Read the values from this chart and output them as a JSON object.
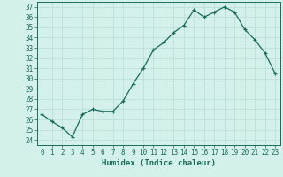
{
  "x": [
    0,
    1,
    2,
    3,
    4,
    5,
    6,
    7,
    8,
    9,
    10,
    11,
    12,
    13,
    14,
    15,
    16,
    17,
    18,
    19,
    20,
    21,
    22,
    23
  ],
  "y": [
    26.5,
    25.8,
    25.2,
    24.3,
    26.5,
    27.0,
    26.8,
    26.8,
    27.8,
    29.5,
    31.0,
    32.8,
    33.5,
    34.5,
    35.2,
    36.7,
    36.0,
    36.5,
    37.0,
    36.5,
    34.8,
    33.8,
    32.5,
    30.5
  ],
  "line_color": "#1a6b5a",
  "marker": "+",
  "marker_size": 3,
  "bg_color": "#d4f0eb",
  "grid_color": "#b8ddd8",
  "xlabel": "Humidex (Indice chaleur)",
  "ylim": [
    23.5,
    37.5
  ],
  "yticks": [
    24,
    25,
    26,
    27,
    28,
    29,
    30,
    31,
    32,
    33,
    34,
    35,
    36,
    37
  ],
  "xticks": [
    0,
    1,
    2,
    3,
    4,
    5,
    6,
    7,
    8,
    9,
    10,
    11,
    12,
    13,
    14,
    15,
    16,
    17,
    18,
    19,
    20,
    21,
    22,
    23
  ],
  "tick_label_fontsize": 5.5,
  "xlabel_fontsize": 6.5,
  "axis_color": "#1a6b5a",
  "linewidth": 0.9,
  "markeredgewidth": 0.9
}
